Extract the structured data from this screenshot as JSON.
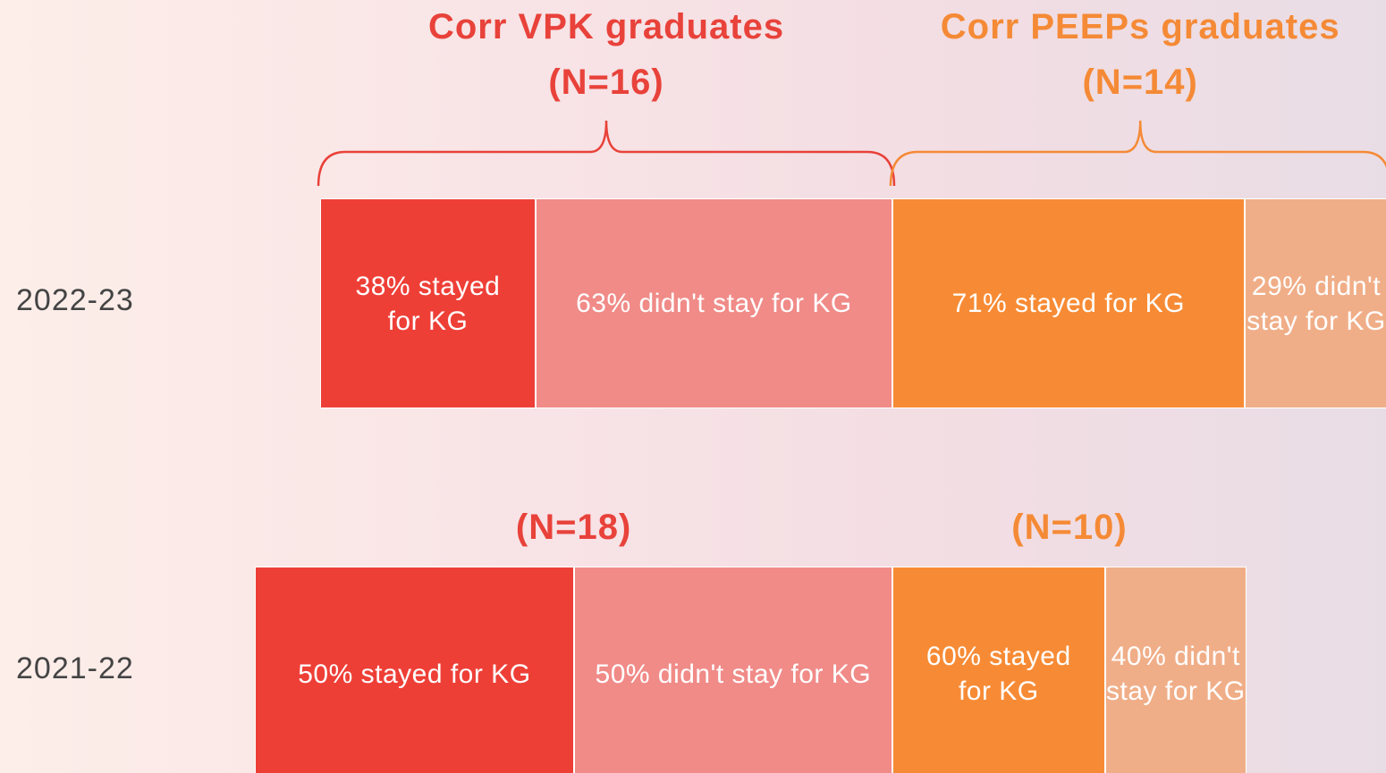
{
  "chart_data": {
    "type": "bar",
    "rows": [
      {
        "label": "2022-23",
        "groups": [
          {
            "title": "Corr VPK graduates",
            "n": 16,
            "n_label": "(N=16)",
            "color": "#e8423a",
            "segments": [
              {
                "label": "38% stayed for KG",
                "value": 38,
                "color": "#ee3f37"
              },
              {
                "label": "63% didn't stay for KG",
                "value": 63,
                "color": "#f08b88"
              }
            ]
          },
          {
            "title": "Corr PEEPs graduates",
            "n": 14,
            "n_label": "(N=14)",
            "color": "#f58a36",
            "segments": [
              {
                "label": "71% stayed for KG",
                "value": 71,
                "color": "#f78b35"
              },
              {
                "label": "29% didn't stay for KG",
                "value": 29,
                "color": "#f0ae88"
              }
            ]
          }
        ]
      },
      {
        "label": "2021-22",
        "groups": [
          {
            "n": 18,
            "n_label": "(N=18)",
            "color": "#e8423a",
            "segments": [
              {
                "label": "50% stayed for KG",
                "value": 50,
                "color": "#ee3f37"
              },
              {
                "label": "50% didn't stay for KG",
                "value": 50,
                "color": "#f08b88"
              }
            ]
          },
          {
            "n": 10,
            "n_label": "(N=10)",
            "color": "#f58a36",
            "segments": [
              {
                "label": "60% stayed for KG",
                "value": 60,
                "color": "#f78b35"
              },
              {
                "label": "40% didn't stay for KG",
                "value": 40,
                "color": "#f0ae88"
              }
            ]
          }
        ]
      }
    ]
  }
}
